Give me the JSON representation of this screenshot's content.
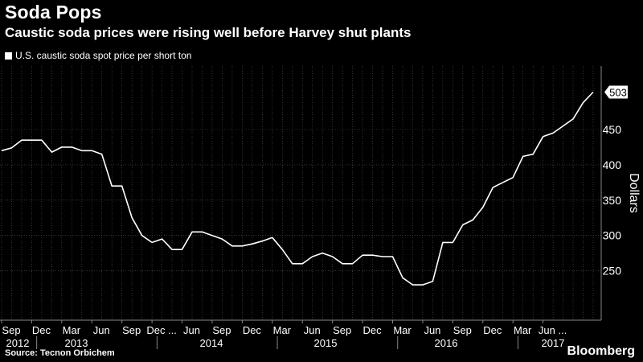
{
  "header": {
    "title": "Soda Pops",
    "subtitle": "Caustic soda prices were rising well before Harvey shut plants"
  },
  "footer": {
    "source": "Source: Tecnon Orbichem",
    "brand": "Bloomberg"
  },
  "colors": {
    "background": "#000000",
    "line": "#ffffff",
    "grid": "#555555",
    "text": "#ffffff"
  },
  "chart_data": {
    "type": "line",
    "title": "Soda Pops",
    "subtitle": "Caustic soda prices were rising well before Harvey shut plants",
    "series": [
      {
        "name": "U.S. caustic soda spot price per short ton",
        "values": [
          420,
          424,
          435,
          435,
          435,
          418,
          425,
          425,
          420,
          420,
          415,
          370,
          370,
          325,
          300,
          290,
          295,
          280,
          280,
          305,
          305,
          300,
          295,
          285,
          285,
          288,
          292,
          297,
          280,
          260,
          260,
          270,
          275,
          270,
          260,
          260,
          272,
          272,
          270,
          270,
          240,
          230,
          230,
          235,
          290,
          290,
          315,
          322,
          340,
          368,
          375,
          382,
          412,
          415,
          440,
          445,
          455,
          465,
          488,
          503
        ]
      }
    ],
    "x_start": "2012-09",
    "x_end": "2017-08",
    "x_month_labels": [
      "Sep",
      "Dec",
      "Mar",
      "Jun",
      "Sep",
      "Dec ...",
      "Jun",
      "Sep",
      "Dec",
      "Mar",
      "Jun",
      "Sep",
      "Dec",
      "Mar",
      "Jun",
      "Sep",
      "Dec",
      "Mar",
      "Jun ..."
    ],
    "x_year_labels": [
      "2012",
      "2013",
      "2014",
      "2015",
      "2016",
      "2017"
    ],
    "ylabel": "Dollars",
    "y_ticks": [
      250,
      300,
      350,
      400,
      450
    ],
    "ylim": [
      180,
      540
    ],
    "last_value_label": "503",
    "grid": true,
    "legend_position": "top-left"
  }
}
